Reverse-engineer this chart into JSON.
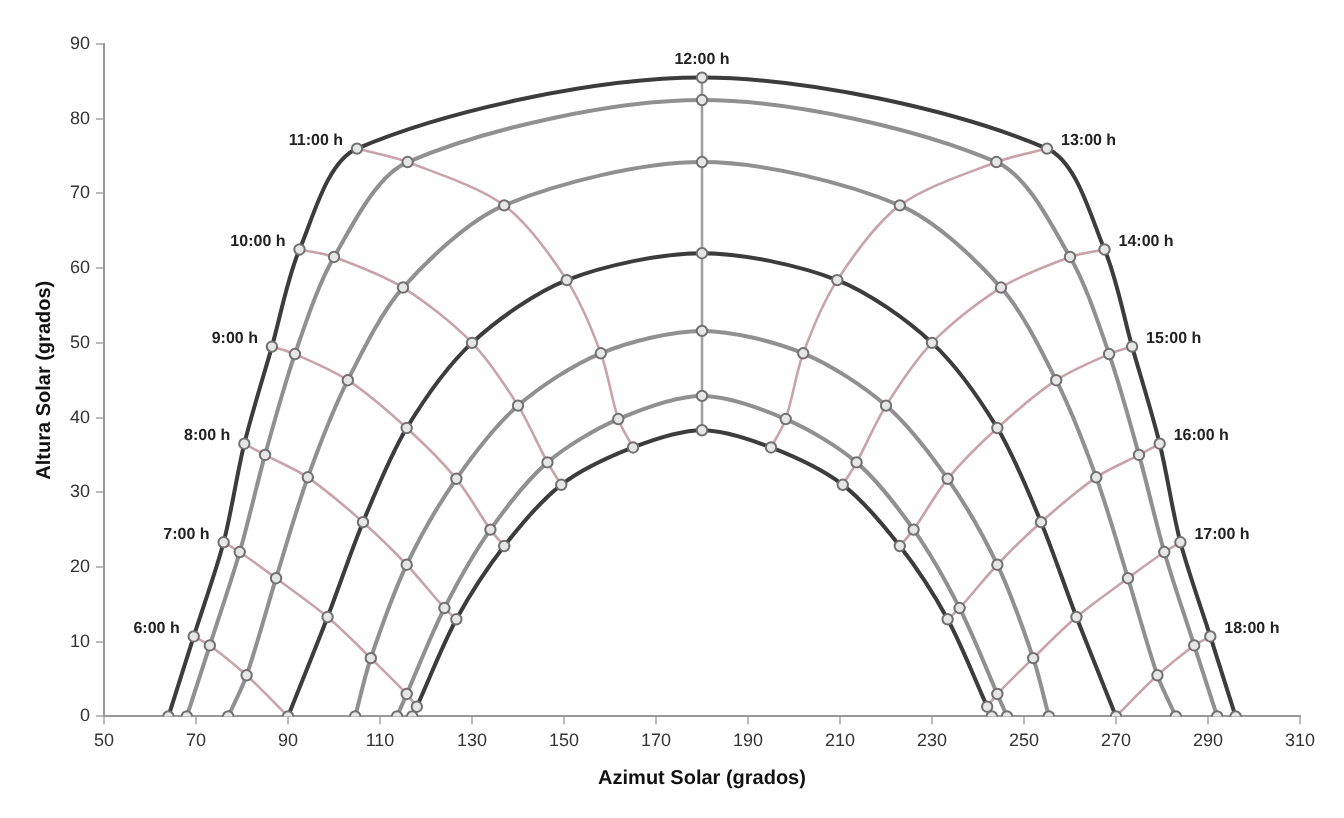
{
  "chart_data": {
    "type": "line",
    "xlabel": "Azimut Solar (grados)",
    "ylabel": "Altura Solar (grados)",
    "xlim": [
      50,
      310
    ],
    "xticks": [
      50,
      70,
      90,
      110,
      130,
      150,
      170,
      190,
      210,
      230,
      250,
      270,
      290,
      310
    ],
    "ylim": [
      0,
      90
    ],
    "yticks": [
      0,
      10,
      20,
      30,
      40,
      50,
      60,
      70,
      80,
      90
    ],
    "legend": false,
    "marker": "circle",
    "series": [
      {
        "color": "#3c3c3c",
        "x": [
          64,
          69.5,
          76,
          80.5,
          86.5,
          92.5,
          105,
          180,
          255,
          267.5,
          273.5,
          279.5,
          284,
          290.5,
          296
        ],
        "values": [
          0,
          10.7,
          23.3,
          36.5,
          49.5,
          62.5,
          76,
          85.5,
          76,
          62.5,
          49.5,
          36.5,
          23.3,
          10.7,
          0
        ]
      },
      {
        "color": "#909090",
        "x": [
          68,
          73,
          79.5,
          85,
          91.5,
          100,
          116,
          180,
          244,
          260,
          268.5,
          275,
          280.5,
          287,
          292
        ],
        "values": [
          0,
          9.5,
          22,
          35,
          48.5,
          61.5,
          74.2,
          82.5,
          74.2,
          61.5,
          48.5,
          35,
          22,
          9.5,
          0
        ]
      },
      {
        "color": "#909090",
        "x": [
          77,
          81,
          87.4,
          94.3,
          103,
          115,
          137,
          180,
          223,
          245,
          257,
          265.7,
          272.6,
          279,
          283
        ],
        "values": [
          0,
          5.5,
          18.5,
          32,
          45,
          57.4,
          68.4,
          74.2,
          68.4,
          57.4,
          45,
          32,
          18.5,
          5.5,
          0
        ]
      },
      {
        "color": "#3c3c3c",
        "x": [
          90,
          98.6,
          106.3,
          115.8,
          130,
          150.6,
          180,
          209.4,
          230,
          244.2,
          253.7,
          261.4,
          270
        ],
        "values": [
          0,
          13.3,
          26,
          38.6,
          50,
          58.4,
          62,
          58.4,
          50,
          38.6,
          26,
          13.3,
          0
        ]
      },
      {
        "color": "#909090",
        "x": [
          104.6,
          108,
          115.8,
          126.6,
          140,
          158,
          180,
          202,
          220,
          233.4,
          244.2,
          252,
          255.4
        ],
        "values": [
          0,
          7.8,
          20.3,
          31.8,
          41.6,
          48.6,
          51.6,
          48.6,
          41.6,
          31.8,
          20.3,
          7.8,
          0
        ]
      },
      {
        "color": "#909090",
        "x": [
          113.7,
          115.8,
          124,
          134,
          146.4,
          161.8,
          180,
          198.2,
          213.6,
          226,
          236,
          244.2,
          246.3
        ],
        "values": [
          0,
          3,
          14.5,
          25,
          34,
          39.8,
          42.9,
          39.8,
          34,
          25,
          14.5,
          3,
          0
        ]
      },
      {
        "color": "#3c3c3c",
        "x": [
          117,
          118,
          126.6,
          137,
          149.4,
          165,
          180,
          195,
          210.6,
          223,
          233.4,
          242,
          243
        ],
        "values": [
          0,
          1.3,
          13,
          22.8,
          31,
          36,
          38.3,
          36,
          31,
          22.8,
          13,
          1.3,
          0
        ]
      },
      {
        "name": "6:00 h",
        "color": "#c9a3aa",
        "marker": "none",
        "x": [
          69.5,
          73,
          81,
          90
        ],
        "values": [
          10.7,
          9.5,
          5.5,
          0
        ]
      },
      {
        "name": "7:00 h",
        "color": "#c9a3aa",
        "marker": "none",
        "x": [
          76,
          79.5,
          87.4,
          98.6,
          108,
          115.8,
          118
        ],
        "values": [
          23.3,
          22,
          18.5,
          13.3,
          7.8,
          3,
          1.3
        ]
      },
      {
        "name": "8:00 h",
        "color": "#c9a3aa",
        "marker": "none",
        "x": [
          80.5,
          85,
          94.3,
          106.3,
          115.8,
          124,
          126.6
        ],
        "values": [
          36.5,
          35,
          32,
          26,
          20.3,
          14.5,
          13
        ]
      },
      {
        "name": "9:00 h",
        "color": "#c9a3aa",
        "marker": "none",
        "x": [
          86.5,
          91.5,
          103,
          115.8,
          126.6,
          134,
          137
        ],
        "values": [
          49.5,
          48.5,
          45,
          38.6,
          31.8,
          25,
          22.8
        ]
      },
      {
        "name": "10:00 h",
        "color": "#c9a3aa",
        "marker": "none",
        "x": [
          92.5,
          100,
          115,
          130,
          140,
          146.4,
          149.4
        ],
        "values": [
          62.5,
          61.5,
          57.4,
          50,
          41.6,
          34,
          31
        ]
      },
      {
        "name": "11:00 h",
        "color": "#c9a3aa",
        "marker": "none",
        "x": [
          105,
          116,
          137,
          150.6,
          158,
          161.8,
          165
        ],
        "values": [
          76,
          74.2,
          68.4,
          58.4,
          48.6,
          39.8,
          36
        ]
      },
      {
        "name": "12:00 h",
        "color": "#a0a0a0",
        "marker": "none",
        "x": [
          180,
          180,
          180,
          180,
          180,
          180,
          180
        ],
        "values": [
          85.5,
          82.5,
          74.2,
          62,
          51.6,
          42.9,
          38.3
        ]
      },
      {
        "name": "13:00 h",
        "color": "#c9a3aa",
        "marker": "none",
        "x": [
          255,
          244,
          223,
          209.4,
          202,
          198.2,
          195
        ],
        "values": [
          76,
          74.2,
          68.4,
          58.4,
          48.6,
          39.8,
          36
        ]
      },
      {
        "name": "14:00 h",
        "color": "#c9a3aa",
        "marker": "none",
        "x": [
          267.5,
          260,
          245,
          230,
          220,
          213.6,
          210.6
        ],
        "values": [
          62.5,
          61.5,
          57.4,
          50,
          41.6,
          34,
          31
        ]
      },
      {
        "name": "15:00 h",
        "color": "#c9a3aa",
        "marker": "none",
        "x": [
          273.5,
          268.5,
          257,
          244.2,
          233.4,
          226,
          223
        ],
        "values": [
          49.5,
          48.5,
          45,
          38.6,
          31.8,
          25,
          22.8
        ]
      },
      {
        "name": "16:00 h",
        "color": "#c9a3aa",
        "marker": "none",
        "x": [
          279.5,
          275,
          265.7,
          253.7,
          244.2,
          236,
          233.4
        ],
        "values": [
          36.5,
          35,
          32,
          26,
          20.3,
          14.5,
          13
        ]
      },
      {
        "name": "17:00 h",
        "color": "#c9a3aa",
        "marker": "none",
        "x": [
          284,
          280.5,
          272.6,
          261.4,
          252,
          244.2,
          242
        ],
        "values": [
          23.3,
          22,
          18.5,
          13.3,
          7.8,
          3,
          1.3
        ]
      },
      {
        "name": "18:00 h",
        "color": "#c9a3aa",
        "marker": "none",
        "x": [
          290.5,
          287,
          279,
          270
        ],
        "values": [
          10.7,
          9.5,
          5.5,
          0
        ]
      }
    ]
  }
}
